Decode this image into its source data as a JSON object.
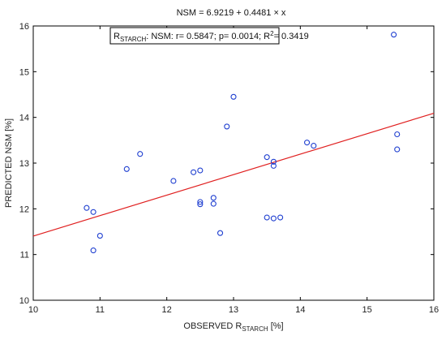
{
  "chart_data": {
    "type": "scatter",
    "title": "NSM = 6.9219 + 0.4481 × x",
    "xlabel": "OBSERVED R",
    "xlabel_sub": "STARCH",
    "xlabel_unit": " [%]",
    "ylabel": "PREDICTED NSM [%]",
    "xlim": [
      10,
      16
    ],
    "ylim": [
      10,
      16
    ],
    "xticks": [
      "10",
      "11",
      "12",
      "13",
      "14",
      "15",
      "16"
    ],
    "yticks": [
      "10",
      "11",
      "12",
      "13",
      "14",
      "15",
      "16"
    ],
    "grid": false,
    "annotation": {
      "prefix": "R",
      "sub": "STARCH",
      "mid": ": NSM: r= 0.5847; p= 0.0014; R",
      "sup": "2",
      "tail": "= 0.3419"
    },
    "regression": {
      "intercept": 6.9219,
      "slope": 0.4481,
      "color": "#e02020"
    },
    "marker_color": "#1f3fd0",
    "points": [
      {
        "x": 10.8,
        "y": 12.02
      },
      {
        "x": 10.9,
        "y": 11.93
      },
      {
        "x": 10.9,
        "y": 11.09
      },
      {
        "x": 11.0,
        "y": 11.41
      },
      {
        "x": 11.4,
        "y": 12.87
      },
      {
        "x": 11.6,
        "y": 13.2
      },
      {
        "x": 12.1,
        "y": 12.61
      },
      {
        "x": 12.4,
        "y": 12.8
      },
      {
        "x": 12.5,
        "y": 12.84
      },
      {
        "x": 12.5,
        "y": 12.15
      },
      {
        "x": 12.5,
        "y": 12.1
      },
      {
        "x": 12.7,
        "y": 12.24
      },
      {
        "x": 12.7,
        "y": 12.11
      },
      {
        "x": 12.8,
        "y": 11.47
      },
      {
        "x": 12.9,
        "y": 13.8
      },
      {
        "x": 13.0,
        "y": 14.45
      },
      {
        "x": 13.5,
        "y": 13.13
      },
      {
        "x": 13.5,
        "y": 11.81
      },
      {
        "x": 13.6,
        "y": 13.03
      },
      {
        "x": 13.6,
        "y": 12.94
      },
      {
        "x": 13.6,
        "y": 11.79
      },
      {
        "x": 13.7,
        "y": 11.81
      },
      {
        "x": 14.1,
        "y": 13.45
      },
      {
        "x": 14.2,
        "y": 13.38
      },
      {
        "x": 15.4,
        "y": 15.81
      },
      {
        "x": 15.45,
        "y": 13.63
      },
      {
        "x": 15.45,
        "y": 13.3
      }
    ]
  }
}
